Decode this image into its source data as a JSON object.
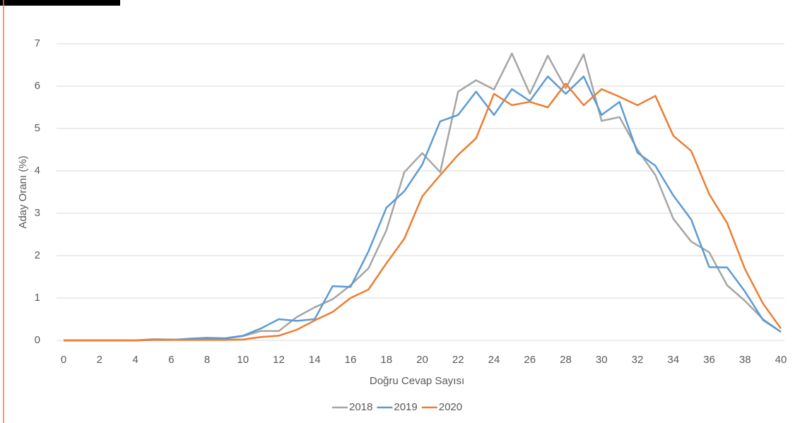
{
  "chart_data": {
    "type": "line",
    "x_label": "Doğru Cevap Sayısı",
    "y_label": "Aday Oranı (%)",
    "x": [
      0,
      1,
      2,
      3,
      4,
      5,
      6,
      7,
      8,
      9,
      10,
      11,
      12,
      13,
      14,
      15,
      16,
      17,
      18,
      19,
      20,
      21,
      22,
      23,
      24,
      25,
      26,
      27,
      28,
      29,
      30,
      31,
      32,
      33,
      34,
      35,
      36,
      37,
      38,
      39,
      40
    ],
    "series": [
      {
        "name": "2018",
        "color": "#a5a5a5",
        "values": [
          0,
          0,
          0,
          0,
          0,
          0.03,
          0.02,
          0.02,
          0.03,
          0.04,
          0.1,
          0.22,
          0.22,
          0.55,
          0.78,
          0.97,
          1.3,
          1.7,
          2.6,
          3.97,
          4.42,
          3.97,
          5.87,
          6.14,
          5.92,
          6.77,
          5.82,
          6.72,
          5.95,
          6.75,
          5.18,
          5.27,
          4.5,
          3.9,
          2.87,
          2.33,
          2.08,
          1.3,
          0.93,
          0.5,
          0.2
        ]
      },
      {
        "name": "2019",
        "color": "#5b9bd5",
        "values": [
          0,
          0,
          0,
          0,
          0,
          0.01,
          0.01,
          0.04,
          0.06,
          0.05,
          0.11,
          0.28,
          0.5,
          0.46,
          0.5,
          1.28,
          1.26,
          2.1,
          3.13,
          3.52,
          4.15,
          5.17,
          5.32,
          5.87,
          5.32,
          5.93,
          5.65,
          6.23,
          5.82,
          6.23,
          5.32,
          5.63,
          4.43,
          4.12,
          3.42,
          2.85,
          1.73,
          1.72,
          1.15,
          0.48,
          0.2
        ]
      },
      {
        "name": "2020",
        "color": "#ed7d31",
        "values": [
          0,
          0,
          0,
          0,
          0,
          0.01,
          0.01,
          0.01,
          0.01,
          0.01,
          0.02,
          0.08,
          0.11,
          0.25,
          0.47,
          0.67,
          1.0,
          1.2,
          1.82,
          2.4,
          3.4,
          3.9,
          4.38,
          4.77,
          5.82,
          5.55,
          5.63,
          5.5,
          6.06,
          5.55,
          5.93,
          5.75,
          5.55,
          5.77,
          4.83,
          4.47,
          3.45,
          2.77,
          1.68,
          0.87,
          0.28
        ]
      }
    ],
    "xlim": [
      0,
      40
    ],
    "xticks": [
      0,
      2,
      4,
      6,
      8,
      10,
      12,
      14,
      16,
      18,
      20,
      22,
      24,
      26,
      28,
      30,
      32,
      34,
      36,
      38,
      40
    ],
    "ylim": [
      0,
      7
    ],
    "yticks": [
      0,
      1,
      2,
      3,
      4,
      5,
      6,
      7
    ],
    "grid": true,
    "legend": "bottom"
  }
}
